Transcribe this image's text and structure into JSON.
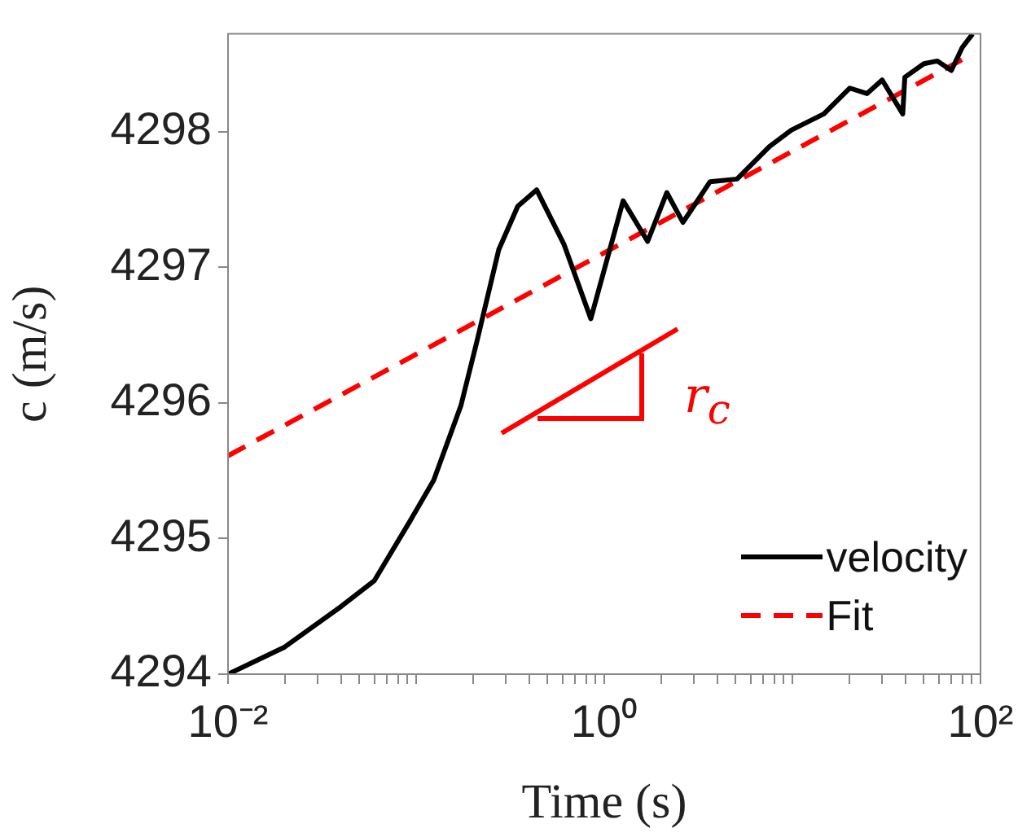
{
  "chart_data": {
    "type": "line",
    "xlabel": "Time (s)",
    "ylabel": "c (m/s)",
    "log": "x",
    "legend": "bottom right",
    "grid": false,
    "marker": "none",
    "xlim": [
      0.01,
      100
    ],
    "ylim": [
      4294,
      4298.72
    ],
    "xticks": [
      {
        "value": 0.01,
        "label": "10⁻²"
      },
      {
        "value": 0.02,
        "label": null
      },
      {
        "value": 0.03,
        "label": null
      },
      {
        "value": 0.04,
        "label": null
      },
      {
        "value": 0.05,
        "label": null
      },
      {
        "value": 0.06,
        "label": null
      },
      {
        "value": 0.07,
        "label": null
      },
      {
        "value": 0.08,
        "label": null
      },
      {
        "value": 0.09,
        "label": null
      },
      {
        "value": 0.1,
        "label": null
      },
      {
        "value": 0.2,
        "label": null
      },
      {
        "value": 0.3,
        "label": null
      },
      {
        "value": 0.4,
        "label": null
      },
      {
        "value": 0.5,
        "label": null
      },
      {
        "value": 0.6,
        "label": null
      },
      {
        "value": 0.7,
        "label": null
      },
      {
        "value": 0.8,
        "label": null
      },
      {
        "value": 0.9,
        "label": null
      },
      {
        "value": 1,
        "label": "10⁰"
      },
      {
        "value": 2,
        "label": null
      },
      {
        "value": 3,
        "label": null
      },
      {
        "value": 4,
        "label": null
      },
      {
        "value": 5,
        "label": null
      },
      {
        "value": 6,
        "label": null
      },
      {
        "value": 7,
        "label": null
      },
      {
        "value": 8,
        "label": null
      },
      {
        "value": 9,
        "label": null
      },
      {
        "value": 10,
        "label": null
      },
      {
        "value": 20,
        "label": null
      },
      {
        "value": 30,
        "label": null
      },
      {
        "value": 40,
        "label": null
      },
      {
        "value": 50,
        "label": null
      },
      {
        "value": 60,
        "label": null
      },
      {
        "value": 70,
        "label": null
      },
      {
        "value": 80,
        "label": null
      },
      {
        "value": 90,
        "label": null
      },
      {
        "value": 100,
        "label": "10²"
      }
    ],
    "yticks": [
      4294,
      4295,
      4296,
      4297,
      4298
    ],
    "annotations": [
      "r$_{c}$"
    ],
    "series": [
      {
        "name": "velocity",
        "color": "#000000",
        "line_style": "solid",
        "x": [
          0.01,
          0.02,
          0.04,
          0.06,
          0.071,
          0.092,
          0.124,
          0.173,
          0.211,
          0.275,
          0.347,
          0.437,
          0.61,
          0.848,
          1.26,
          1.7,
          2.15,
          2.62,
          3.65,
          5.08,
          7.56,
          9.86,
          14.7,
          20.2,
          24.9,
          30,
          38.6,
          39.6,
          50,
          59,
          70,
          80,
          90.8
        ],
        "values": [
          4294.0,
          4294.2,
          4294.5,
          4294.69,
          4294.86,
          4295.12,
          4295.43,
          4295.98,
          4296.46,
          4297.13,
          4297.45,
          4297.57,
          4297.17,
          4296.62,
          4297.49,
          4297.19,
          4297.55,
          4297.33,
          4297.63,
          4297.65,
          4297.89,
          4298.01,
          4298.13,
          4298.32,
          4298.28,
          4298.38,
          4298.13,
          4298.4,
          4298.5,
          4298.52,
          4298.45,
          4298.62,
          4298.72
        ]
      },
      {
        "name": "Fit",
        "color": "#ff0000",
        "line_style": "dashed",
        "x": [
          0.01,
          85
        ],
        "values": [
          4295.61,
          4298.55
        ]
      }
    ]
  }
}
